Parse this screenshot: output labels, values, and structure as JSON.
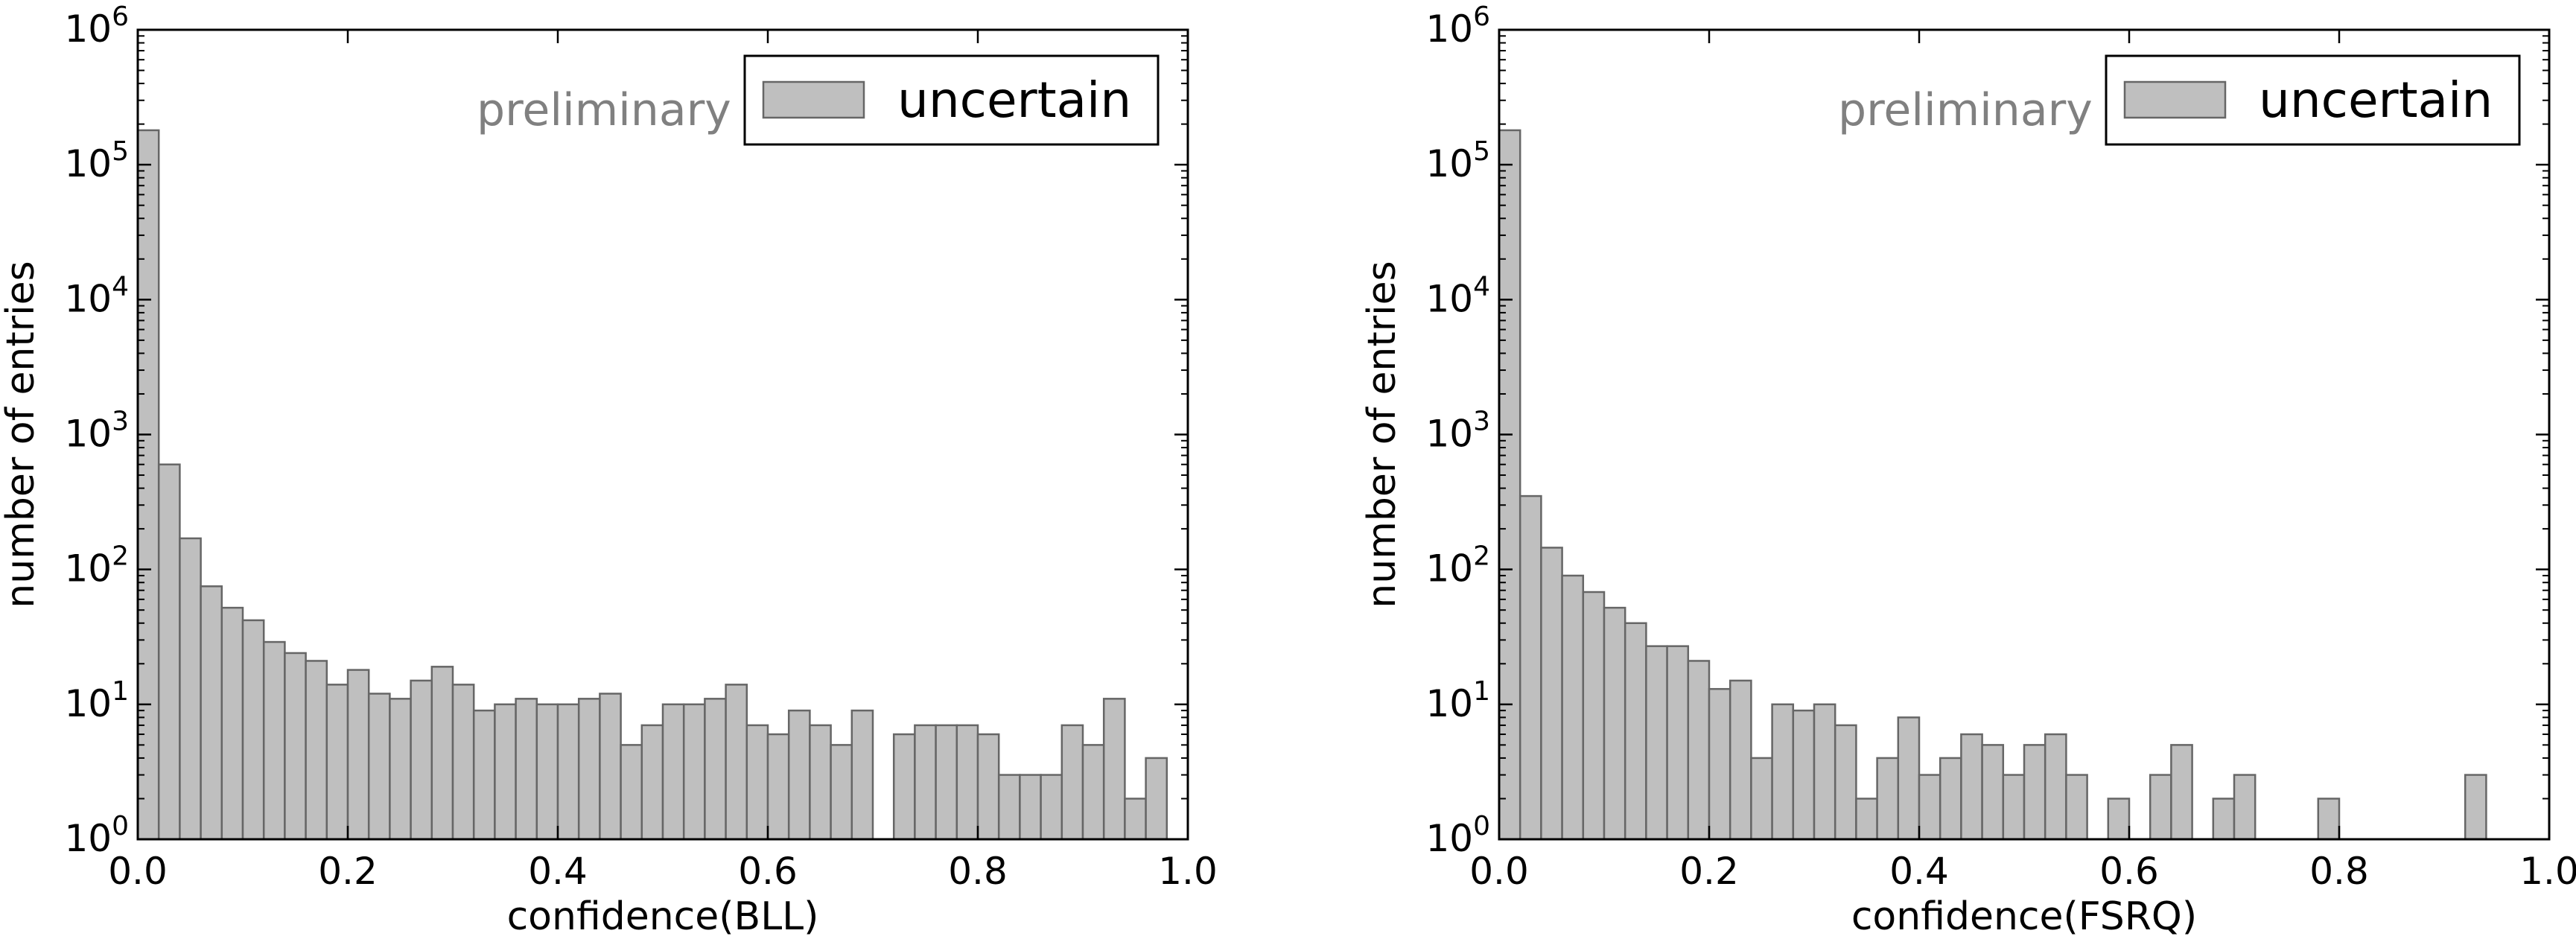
{
  "chart_data": [
    {
      "type": "bar",
      "xlabel": "confidence(BLL)",
      "ylabel": "number of entries",
      "annotation": "preliminary",
      "legend": {
        "entries": [
          "uncertain"
        ],
        "placement": "top-right"
      },
      "xlim": [
        0.0,
        1.0
      ],
      "ylim": [
        1,
        1000000
      ],
      "yscale": "log",
      "xticks": [
        "0.0",
        "0.2",
        "0.4",
        "0.6",
        "0.8",
        "1.0"
      ],
      "yticks": [
        {
          "base": "10",
          "exp": "0"
        },
        {
          "base": "10",
          "exp": "1"
        },
        {
          "base": "10",
          "exp": "2"
        },
        {
          "base": "10",
          "exp": "3"
        },
        {
          "base": "10",
          "exp": "4"
        },
        {
          "base": "10",
          "exp": "5"
        },
        {
          "base": "10",
          "exp": "6"
        }
      ],
      "bin_width": 0.02,
      "series": [
        {
          "name": "uncertain",
          "color": "#bfbfbf",
          "edge_color": "#666666",
          "bin_start": [
            0.0,
            0.02,
            0.04,
            0.06,
            0.08,
            0.1,
            0.12,
            0.14,
            0.16,
            0.18,
            0.2,
            0.22,
            0.24,
            0.26,
            0.28,
            0.3,
            0.32,
            0.34,
            0.36,
            0.38,
            0.4,
            0.42,
            0.44,
            0.46,
            0.48,
            0.5,
            0.52,
            0.54,
            0.56,
            0.58,
            0.6,
            0.62,
            0.64,
            0.66,
            0.68,
            0.7,
            0.72,
            0.74,
            0.76,
            0.78,
            0.8,
            0.82,
            0.84,
            0.86,
            0.88,
            0.9,
            0.92,
            0.94,
            0.96
          ],
          "values": [
            180000,
            600,
            170,
            75,
            52,
            42,
            29,
            24,
            21,
            14,
            18,
            12,
            11,
            15,
            19,
            14,
            9,
            10,
            11,
            10,
            10,
            11,
            12,
            5,
            7,
            10,
            10,
            11,
            14,
            7,
            6,
            9,
            7,
            5,
            9,
            0,
            6,
            7,
            7,
            7,
            6,
            3,
            3,
            3,
            7,
            5,
            11,
            2,
            4
          ]
        }
      ]
    },
    {
      "type": "bar",
      "xlabel": "confidence(FSRQ)",
      "ylabel": "number of entries",
      "annotation": "preliminary",
      "legend": {
        "entries": [
          "uncertain"
        ],
        "placement": "top-right"
      },
      "xlim": [
        0.0,
        1.0
      ],
      "ylim": [
        1,
        1000000
      ],
      "yscale": "log",
      "xticks": [
        "0.0",
        "0.2",
        "0.4",
        "0.6",
        "0.8",
        "1.0"
      ],
      "yticks": [
        {
          "base": "10",
          "exp": "0"
        },
        {
          "base": "10",
          "exp": "1"
        },
        {
          "base": "10",
          "exp": "2"
        },
        {
          "base": "10",
          "exp": "3"
        },
        {
          "base": "10",
          "exp": "4"
        },
        {
          "base": "10",
          "exp": "5"
        },
        {
          "base": "10",
          "exp": "6"
        }
      ],
      "bin_width": 0.02,
      "series": [
        {
          "name": "uncertain",
          "color": "#bfbfbf",
          "edge_color": "#666666",
          "bin_start": [
            0.0,
            0.02,
            0.04,
            0.06,
            0.08,
            0.1,
            0.12,
            0.14,
            0.16,
            0.18,
            0.2,
            0.22,
            0.24,
            0.26,
            0.28,
            0.3,
            0.32,
            0.34,
            0.36,
            0.38,
            0.4,
            0.42,
            0.44,
            0.46,
            0.48,
            0.5,
            0.52,
            0.54,
            0.56,
            0.58,
            0.6,
            0.62,
            0.64,
            0.66,
            0.68,
            0.7,
            0.72,
            0.74,
            0.76,
            0.78,
            0.8,
            0.82,
            0.84,
            0.86,
            0.88,
            0.9,
            0.92
          ],
          "values": [
            180000,
            350,
            145,
            90,
            68,
            52,
            40,
            27,
            27,
            21,
            13,
            15,
            4,
            10,
            9,
            10,
            7,
            2,
            4,
            8,
            3,
            4,
            6,
            5,
            3,
            5,
            6,
            3,
            0,
            2,
            0,
            3,
            5,
            0,
            2,
            3,
            0,
            0,
            0,
            2,
            0,
            0,
            0,
            0,
            0,
            0,
            3
          ]
        }
      ]
    }
  ]
}
